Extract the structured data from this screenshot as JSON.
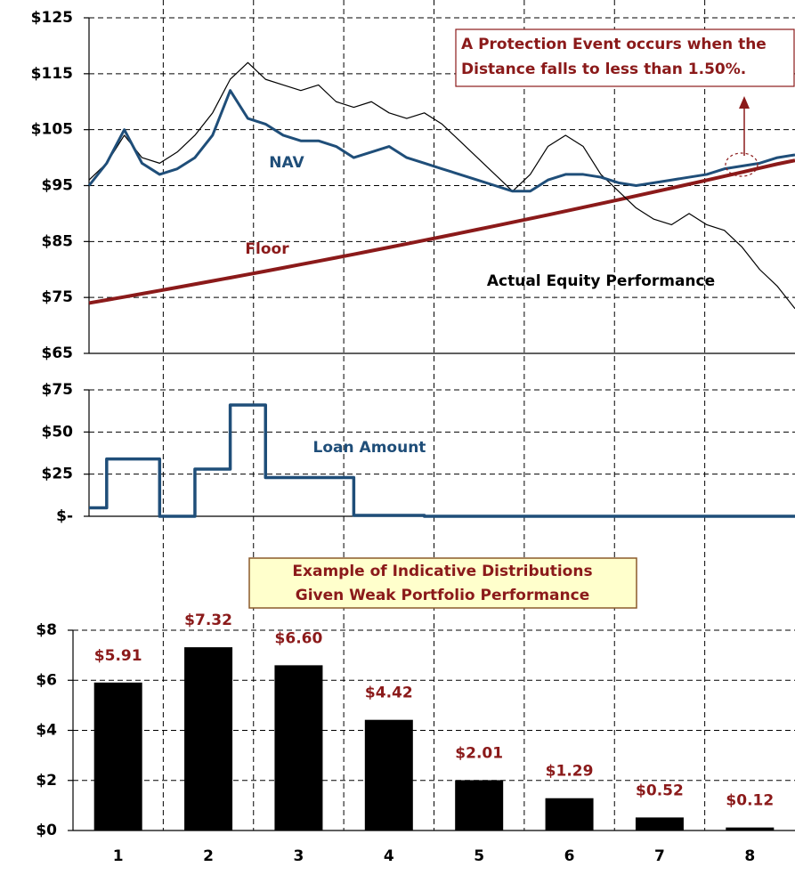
{
  "chart_data": [
    {
      "type": "line",
      "ylim": [
        65,
        125
      ],
      "yticks": [
        {
          "value": 65,
          "label": "$65"
        },
        {
          "value": 75,
          "label": "$75"
        },
        {
          "value": 85,
          "label": "$85"
        },
        {
          "value": 95,
          "label": "$95"
        },
        {
          "value": 105,
          "label": "$105"
        },
        {
          "value": 115,
          "label": "$115"
        },
        {
          "value": 125,
          "label": "$125"
        }
      ],
      "grid": true,
      "series": [
        {
          "name": "Floor",
          "color": "#8b1a1a",
          "values": [
            74,
            74.55,
            75.1,
            75.66,
            76.23,
            76.8,
            77.37,
            77.95,
            78.53,
            79.11,
            79.7,
            80.3,
            80.9,
            81.5,
            82.11,
            82.72,
            83.34,
            83.96,
            84.59,
            85.22,
            85.85,
            86.49,
            87.14,
            87.79,
            88.44,
            89.1,
            89.76,
            90.43,
            91.11,
            91.79,
            92.47,
            93.16,
            93.85,
            94.55,
            95.26,
            95.97,
            96.68,
            97.4,
            98.13,
            98.86,
            99.5
          ]
        },
        {
          "name": "Actual Equity Performance",
          "color": "#000000",
          "values": [
            96,
            99,
            104,
            100,
            99,
            101,
            104,
            108,
            114,
            117,
            114,
            113,
            112,
            113,
            110,
            109,
            110,
            108,
            107,
            108,
            106,
            103,
            100,
            97,
            94,
            97,
            102,
            104,
            102,
            97,
            94,
            91,
            89,
            88,
            90,
            88,
            87,
            84,
            80,
            77,
            73
          ]
        },
        {
          "name": "NAV",
          "color": "#1f4e79",
          "values": [
            95,
            99,
            105,
            99,
            97,
            98,
            100,
            104,
            112,
            107,
            106,
            104,
            103,
            103,
            102,
            100,
            101,
            102,
            100,
            99,
            98,
            97,
            96,
            95,
            94,
            94,
            96,
            97,
            97,
            96.5,
            95.5,
            95,
            95.5,
            96,
            96.5,
            97,
            98,
            98.5,
            99,
            100,
            100.5
          ]
        }
      ],
      "annotations": [
        "A Protection Event occurs when the",
        "Distance falls to less than 1.50%."
      ]
    },
    {
      "type": "line",
      "step": true,
      "ylim": [
        0,
        75
      ],
      "yticks": [
        {
          "value": 0,
          "label": "$-"
        },
        {
          "value": 25,
          "label": "$25"
        },
        {
          "value": 50,
          "label": "$50"
        },
        {
          "value": 75,
          "label": "$75"
        }
      ],
      "grid": true,
      "series": [
        {
          "name": "Loan Amount",
          "color": "#1f4e79",
          "values": [
            5,
            34,
            34,
            34,
            0,
            0,
            28,
            28,
            66,
            66,
            23,
            23,
            23,
            23,
            23,
            0.5,
            0.5,
            0.5,
            0.5,
            0,
            0,
            0,
            0,
            0,
            0,
            0,
            0,
            0,
            0,
            0,
            0,
            0,
            0,
            0,
            0,
            0,
            0,
            0,
            0,
            0,
            0
          ]
        }
      ]
    },
    {
      "type": "bar",
      "title": [
        "Example of Indicative Distributions",
        "Given Weak Portfolio Performance"
      ],
      "categories": [
        "1",
        "2",
        "3",
        "4",
        "5",
        "6",
        "7",
        "8"
      ],
      "values": [
        5.91,
        7.32,
        6.6,
        4.42,
        2.01,
        1.29,
        0.52,
        0.12
      ],
      "value_labels": [
        "$5.91",
        "$7.32",
        "$6.60",
        "$4.42",
        "$2.01",
        "$1.29",
        "$0.52",
        "$0.12"
      ],
      "color": "#000000",
      "ylim": [
        0,
        8
      ],
      "yticks": [
        {
          "value": 0,
          "label": "$0"
        },
        {
          "value": 2,
          "label": "$2"
        },
        {
          "value": 4,
          "label": "$4"
        },
        {
          "value": 6,
          "label": "$6"
        },
        {
          "value": 8,
          "label": "$8"
        }
      ],
      "grid": true
    }
  ]
}
